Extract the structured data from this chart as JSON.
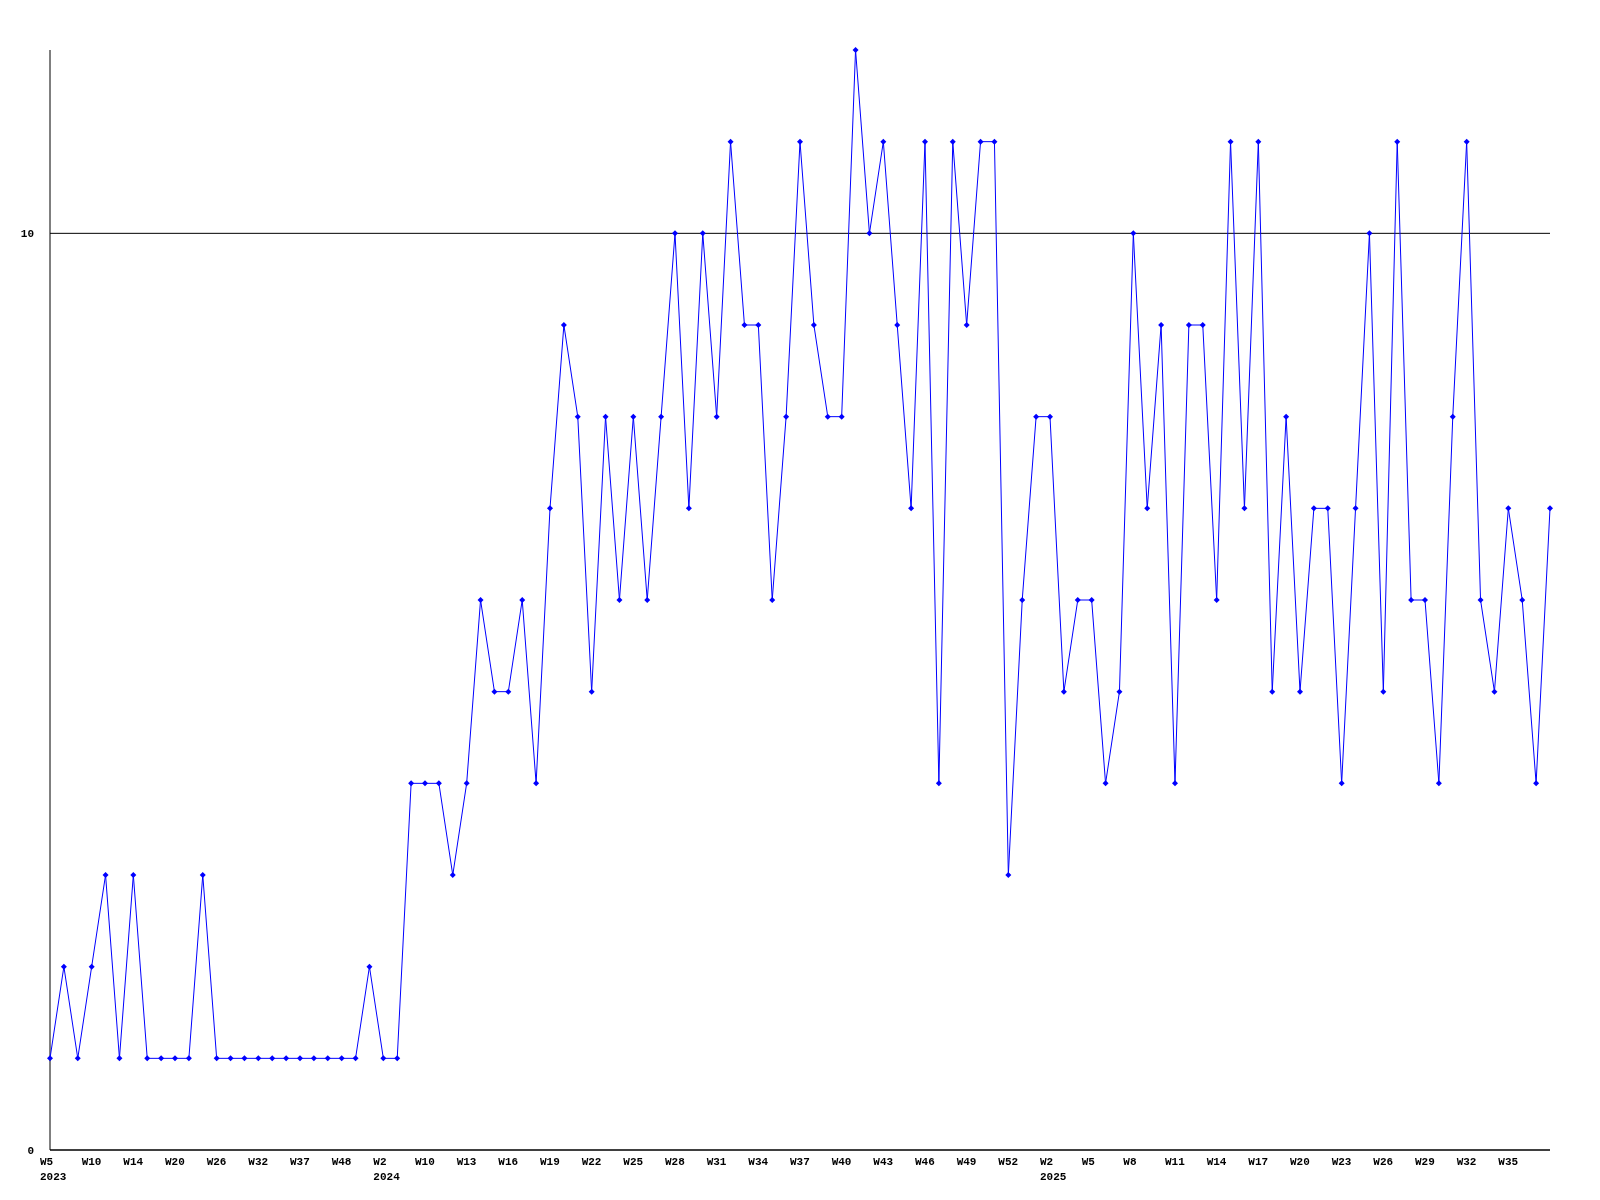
{
  "chart_data": {
    "type": "line",
    "categories": [
      "W5\n2023",
      null,
      null,
      "W10",
      null,
      null,
      "W14",
      null,
      null,
      "W20",
      null,
      null,
      "W26",
      null,
      null,
      "W32",
      null,
      null,
      "W37",
      null,
      null,
      "W48",
      null,
      null,
      "W2\n2024",
      null,
      null,
      "W10",
      null,
      null,
      "W13",
      null,
      null,
      "W16",
      null,
      null,
      "W19",
      null,
      null,
      "W22",
      null,
      null,
      "W25",
      null,
      null,
      "W28",
      null,
      null,
      "W31",
      null,
      null,
      "W34",
      null,
      null,
      "W37",
      null,
      null,
      "W40",
      null,
      null,
      "W43",
      null,
      null,
      "W46",
      null,
      null,
      "W49",
      null,
      null,
      "W52",
      null,
      null,
      "W2\n2025",
      null,
      null,
      "W5",
      null,
      null,
      "W8",
      null,
      null,
      "W11",
      null,
      null,
      "W14",
      null,
      null,
      "W17",
      null,
      null,
      "W20",
      null,
      null,
      "W23",
      null,
      null,
      "W26",
      null,
      null,
      "W29",
      null,
      null,
      "W32",
      null,
      null,
      "W35",
      null,
      null,
      null
    ],
    "series": [
      {
        "color": "#0000ff",
        "values": [
          1,
          2,
          1,
          2,
          3,
          1,
          3,
          1,
          1,
          1,
          1,
          3,
          1,
          1,
          1,
          1,
          1,
          1,
          1,
          1,
          1,
          1,
          1,
          2,
          1,
          1,
          4,
          4,
          4,
          3,
          4,
          6,
          5,
          5,
          6,
          4,
          7,
          9,
          8,
          5,
          8,
          6,
          8,
          6,
          8,
          10,
          7,
          10,
          8,
          11,
          9,
          9,
          6,
          8,
          11,
          9,
          8,
          8,
          12,
          10,
          11,
          9,
          7,
          11,
          4,
          11,
          9,
          11,
          11,
          3,
          6,
          8,
          8,
          5,
          6,
          6,
          4,
          5,
          10,
          7,
          9,
          4,
          9,
          9,
          6,
          11,
          7,
          11,
          5,
          8,
          5,
          7,
          7,
          4,
          7,
          10,
          5,
          11,
          6,
          6,
          4,
          8,
          11,
          6,
          5,
          7,
          6,
          4,
          7
        ]
      }
    ],
    "ylim": [
      0,
      12
    ],
    "yticks": [
      0,
      10
    ],
    "grid": "y",
    "marker": "diamond",
    "line_style": "solid"
  }
}
